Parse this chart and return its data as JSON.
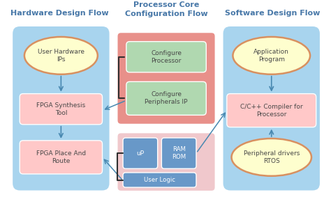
{
  "title_left": "Hardware Design Flow",
  "title_center": "Processor Core\nConfiguration Flow",
  "title_right": "Software Design Flow",
  "bg_color": "#ffffff",
  "left_panel_color": "#a8d4ee",
  "right_panel_color": "#a8d4ee",
  "center_top_color": "#e8908a",
  "center_bot_color": "#f0c8cc",
  "ellipse_fill": "#fefece",
  "ellipse_edge": "#d89060",
  "rect_fill_pink": "#ffc8c8",
  "rect_fill_green": "#b0d8b0",
  "rect_fill_blue": "#6898c8",
  "arrow_color": "#4888b0",
  "title_color": "#4878a8",
  "text_color": "#484848",
  "white": "#ffffff"
}
